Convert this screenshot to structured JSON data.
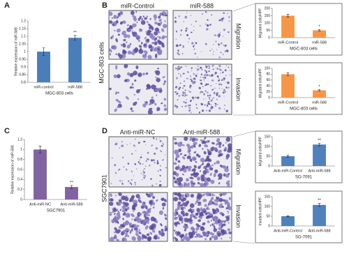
{
  "figure": {
    "panel_labels": [
      "A",
      "B",
      "C",
      "D"
    ],
    "b_columns": [
      "miR-Control",
      "miR-588"
    ],
    "b_rows": [
      "Migration",
      "Invasion"
    ],
    "b_cell": "MGC-803 cells",
    "d_columns": [
      "Anti-miR-NC",
      "Anti-miR-588"
    ],
    "d_rows": [
      "Migration",
      "Invasion"
    ],
    "d_cell": "SGC7901"
  },
  "chart_data": [
    {
      "type": "bar",
      "ylabel": "Relative expression of miR-588",
      "xlabel": "MGC-803 cells",
      "categories": [
        "miR-control",
        "miR-588"
      ],
      "values": [
        1.0,
        1.09
      ],
      "errors": [
        0.025,
        0.015
      ],
      "color": "#4a7ebb",
      "ylim": [
        0.8,
        1.2
      ],
      "yticks": [
        0.8,
        0.85,
        0.9,
        0.95,
        1,
        1.05,
        1.1,
        1.15,
        1.2
      ],
      "annotation": "**"
    },
    {
      "type": "bar",
      "ylabel": "Migrated cells/HPF",
      "xlabel": "MGC-803 cells",
      "categories": [
        "miR-Control",
        "miR-588"
      ],
      "values": [
        150,
        50
      ],
      "errors": [
        10,
        6
      ],
      "color": "#f79646",
      "ylim": [
        0,
        200
      ],
      "yticks": [
        0,
        50,
        100,
        150,
        200
      ],
      "annotation": "*"
    },
    {
      "type": "bar",
      "ylabel": "Migrated cells/HPF",
      "xlabel": "MGC-803 cells",
      "categories": [
        "miR-Control",
        "miR-588"
      ],
      "values": [
        80,
        25
      ],
      "errors": [
        5,
        3
      ],
      "color": "#f79646",
      "ylim": [
        0,
        100
      ],
      "yticks": [
        0,
        20,
        40,
        60,
        80,
        100
      ],
      "annotation": "*"
    },
    {
      "type": "bar",
      "ylabel": "Relative expression of miR-588",
      "xlabel": "SGC7901",
      "categories": [
        "Anti-miR-NC",
        "Anti-miR-588"
      ],
      "values": [
        1.0,
        0.25
      ],
      "errors": [
        0.07,
        0.03
      ],
      "color": "#8064a2",
      "ylim": [
        0,
        1.2
      ],
      "yticks": [
        0,
        0.2,
        0.4,
        0.6,
        0.8,
        1,
        1.2
      ],
      "annotation": "**"
    },
    {
      "type": "bar",
      "ylabel": "Migrated cells/HPF",
      "xlabel": "SG-7091",
      "categories": [
        "Anti-miR-Control",
        "Anti-miR-588"
      ],
      "values": [
        50,
        110
      ],
      "errors": [
        5,
        7
      ],
      "color": "#4f81bd",
      "ylim": [
        0,
        150
      ],
      "yticks": [
        0,
        50,
        100,
        150
      ],
      "annotation": "**"
    },
    {
      "type": "bar",
      "ylabel": "Invaded cells/HPF",
      "xlabel": "SG-7091",
      "categories": [
        "Anti-miR-Control",
        "Anti-miR-588"
      ],
      "values": [
        50,
        108
      ],
      "errors": [
        3,
        8
      ],
      "color": "#4f81bd",
      "ylim": [
        0,
        150
      ],
      "yticks": [
        0,
        50,
        100,
        150
      ],
      "annotation": "**"
    }
  ]
}
